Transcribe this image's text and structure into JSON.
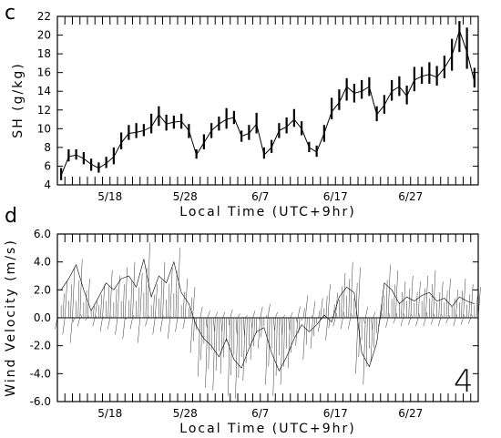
{
  "chart_data": [
    {
      "panel": "c",
      "type": "line",
      "ylabel": "SH (g/kg)",
      "xlabel": "Local Time (UTC+9hr)",
      "x_tick_labels": [
        "5/18",
        "5/28",
        "6/7",
        "6/17",
        "6/27"
      ],
      "y_tick_labels": [
        "4",
        "6",
        "8",
        "10",
        "12",
        "14",
        "16",
        "18",
        "20",
        "22"
      ],
      "xlim": [
        "5/11",
        "7/6"
      ],
      "ylim": [
        4,
        22
      ],
      "series": [
        {
          "x": [
            "5/11",
            "5/12",
            "5/13",
            "5/14",
            "5/15",
            "5/16",
            "5/17",
            "5/18",
            "5/19",
            "5/20",
            "5/21",
            "5/22",
            "5/23",
            "5/24",
            "5/25",
            "5/26",
            "5/27",
            "5/28",
            "5/29",
            "5/30",
            "5/31",
            "6/1",
            "6/2",
            "6/3",
            "6/4",
            "6/5",
            "6/6",
            "6/7",
            "6/8",
            "6/9",
            "6/10",
            "6/11",
            "6/12",
            "6/13",
            "6/14",
            "6/15",
            "6/16",
            "6/17",
            "6/18",
            "6/19",
            "6/20",
            "6/21",
            "6/22",
            "6/23",
            "6/24",
            "6/25",
            "6/26",
            "6/27",
            "6/28",
            "6/29",
            "6/30",
            "7/1",
            "7/2",
            "7/3",
            "7/4",
            "7/5"
          ],
          "values": [
            5.0,
            7.0,
            7.2,
            6.8,
            6.2,
            5.8,
            6.3,
            7.0,
            8.5,
            9.5,
            9.6,
            9.8,
            10.2,
            11.5,
            10.5,
            10.7,
            10.8,
            9.8,
            7.2,
            8.5,
            9.8,
            10.5,
            11.0,
            11.2,
            9.2,
            9.5,
            10.5,
            7.2,
            8.0,
            9.8,
            10.2,
            11.0,
            10.0,
            8.0,
            7.5,
            9.5,
            11.8,
            12.8,
            14.5,
            13.8,
            14.0,
            14.5,
            11.5,
            12.5,
            14.0,
            14.5,
            13.5,
            15.2,
            15.6,
            15.8,
            15.5,
            16.5,
            17.8,
            20.5,
            18.2,
            15.0
          ],
          "min": [
            4.5,
            6.5,
            6.7,
            6.2,
            5.5,
            5.3,
            5.8,
            6.2,
            7.8,
            8.8,
            9.0,
            9.2,
            9.5,
            10.3,
            9.8,
            10.0,
            10.0,
            9.0,
            6.8,
            7.8,
            9.0,
            9.8,
            10.0,
            10.5,
            8.6,
            8.8,
            9.5,
            6.8,
            7.4,
            9.0,
            9.5,
            10.2,
            9.3,
            7.5,
            7.0,
            8.6,
            11.0,
            12.0,
            13.0,
            12.8,
            13.2,
            13.5,
            10.8,
            11.6,
            13.0,
            13.5,
            12.6,
            14.0,
            14.8,
            14.8,
            14.6,
            15.4,
            16.2,
            18.2,
            16.4,
            14.4
          ],
          "max": [
            5.8,
            7.8,
            7.8,
            7.5,
            6.8,
            6.4,
            7.0,
            8.0,
            9.6,
            10.4,
            10.6,
            10.5,
            11.6,
            12.4,
            11.5,
            11.4,
            11.6,
            10.5,
            7.8,
            9.4,
            10.6,
            11.3,
            12.2,
            11.9,
            9.8,
            10.4,
            11.7,
            8.0,
            8.8,
            10.6,
            11.2,
            12.1,
            10.8,
            8.6,
            8.2,
            10.4,
            13.3,
            14.2,
            15.4,
            14.8,
            15.2,
            15.5,
            12.4,
            13.6,
            15.2,
            15.6,
            14.6,
            16.6,
            16.6,
            17.1,
            16.7,
            17.8,
            19.6,
            21.5,
            20.8,
            16.5
          ]
        }
      ]
    },
    {
      "panel": "d",
      "type": "line",
      "ylabel": "Wind Velocity (m/s)",
      "xlabel": "Local Time (UTC+9hr)",
      "x_tick_labels": [
        "5/18",
        "5/28",
        "6/7",
        "6/17",
        "6/27"
      ],
      "y_tick_labels": [
        "-6.0",
        "-4.0",
        "-2.0",
        "0.0",
        "2.0",
        "4.0",
        "6.0"
      ],
      "xlim": [
        "5/11",
        "7/6"
      ],
      "ylim": [
        -6,
        6
      ],
      "annotation": "4",
      "series": [
        {
          "x": [
            "5/11",
            "5/12",
            "5/13",
            "5/14",
            "5/15",
            "5/16",
            "5/17",
            "5/18",
            "5/19",
            "5/20",
            "5/21",
            "5/22",
            "5/23",
            "5/24",
            "5/25",
            "5/26",
            "5/27",
            "5/28",
            "5/29",
            "5/30",
            "5/31",
            "6/1",
            "6/2",
            "6/3",
            "6/4",
            "6/5",
            "6/6",
            "6/7",
            "6/8",
            "6/9",
            "6/10",
            "6/11",
            "6/12",
            "6/13",
            "6/14",
            "6/15",
            "6/16",
            "6/17",
            "6/18",
            "6/19",
            "6/20",
            "6/21",
            "6/22",
            "6/23",
            "6/24",
            "6/25",
            "6/26",
            "6/27",
            "6/28",
            "6/29",
            "6/30",
            "7/1",
            "7/2",
            "7/3",
            "7/4",
            "7/5"
          ],
          "values": [
            2.0,
            2.8,
            3.8,
            2.0,
            0.5,
            1.5,
            2.5,
            2.0,
            2.8,
            3.0,
            2.2,
            4.2,
            1.5,
            3.0,
            2.5,
            4.0,
            1.8,
            1.0,
            -0.6,
            -1.5,
            -2.0,
            -2.8,
            -1.5,
            -3.0,
            -3.6,
            -2.2,
            -1.0,
            -0.7,
            -2.5,
            -3.8,
            -2.8,
            -1.5,
            -0.5,
            -1.0,
            -0.5,
            0.2,
            -0.3,
            1.5,
            2.2,
            1.8,
            -2.5,
            -3.5,
            -1.8,
            2.5,
            2.0,
            1.0,
            1.5,
            1.2,
            1.6,
            1.8,
            1.2,
            1.4,
            0.8,
            1.5,
            1.2,
            1.0
          ],
          "min": [
            -0.8,
            -1.2,
            -1.8,
            -0.6,
            -0.2,
            -0.6,
            -1.0,
            -0.8,
            -1.2,
            -1.5,
            -0.8,
            -1.8,
            -0.6,
            -1.2,
            -1.0,
            -1.5,
            -1.0,
            -0.8,
            -2.5,
            -4.2,
            -5.0,
            -5.2,
            -4.0,
            -5.6,
            -5.8,
            -4.5,
            -3.0,
            -2.2,
            -4.8,
            -5.6,
            -4.8,
            -3.6,
            -2.0,
            -3.0,
            -2.2,
            -1.0,
            -1.6,
            -0.6,
            -0.8,
            -0.8,
            -4.0,
            -4.8,
            -3.2,
            -0.6,
            -0.7,
            -0.4,
            -0.6,
            -0.5,
            -0.6,
            -0.6,
            -0.5,
            -0.6,
            -0.4,
            -0.6,
            -0.5,
            -0.4
          ],
          "max": [
            2.6,
            3.6,
            4.2,
            2.8,
            1.2,
            2.4,
            3.4,
            3.0,
            3.6,
            4.0,
            3.2,
            5.4,
            2.4,
            4.0,
            3.6,
            5.0,
            2.8,
            2.2,
            0.8,
            0.5,
            0.4,
            0.4,
            0.6,
            0.3,
            0.2,
            0.5,
            0.8,
            1.0,
            0.4,
            0.2,
            0.4,
            0.8,
            1.6,
            1.2,
            1.4,
            2.4,
            1.8,
            3.2,
            4.0,
            3.6,
            0.8,
            0.4,
            1.0,
            3.8,
            3.4,
            2.6,
            3.0,
            2.6,
            3.0,
            3.4,
            2.6,
            2.8,
            2.0,
            2.8,
            2.4,
            2.2
          ]
        }
      ]
    }
  ]
}
